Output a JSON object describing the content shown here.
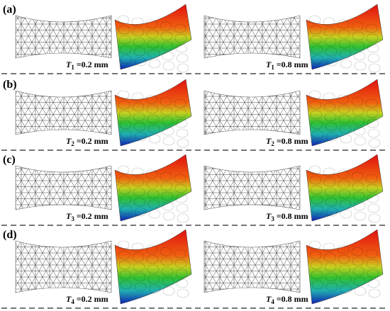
{
  "panels": [
    {
      "label": "(a)",
      "cases": [
        {
          "symbol": "T",
          "subscript": "1",
          "text": "=0.2 mm"
        },
        {
          "symbol": "T",
          "subscript": "1",
          "text": "=0.8 mm"
        }
      ]
    },
    {
      "label": "(b)",
      "cases": [
        {
          "symbol": "T",
          "subscript": "2",
          "text": "=0.2 mm"
        },
        {
          "symbol": "T",
          "subscript": "2",
          "text": "=0.8 mm"
        }
      ]
    },
    {
      "label": "(c)",
      "cases": [
        {
          "symbol": "T",
          "subscript": "3",
          "text": "=0.2 mm"
        },
        {
          "symbol": "T",
          "subscript": "3",
          "text": "=0.8 mm"
        }
      ]
    },
    {
      "label": "(d)",
      "cases": [
        {
          "symbol": "T",
          "subscript": "4",
          "text": "=0.2 mm"
        },
        {
          "symbol": "T",
          "subscript": "4",
          "text": "=0.8 mm"
        }
      ]
    }
  ]
}
